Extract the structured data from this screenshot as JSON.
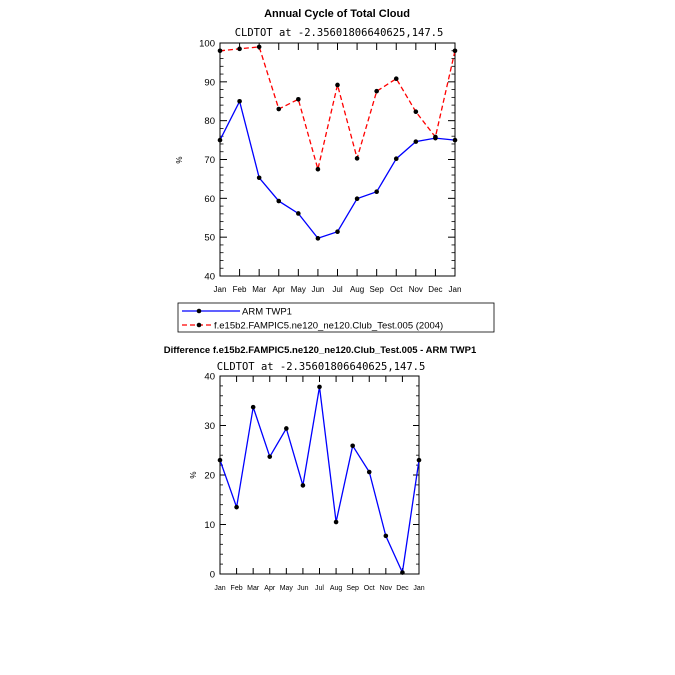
{
  "chart_data": [
    {
      "type": "line",
      "title": "Annual Cycle of Total Cloud",
      "subtitle": "CLDTOT at -2.35601806640625,147.5",
      "xlabel": "",
      "ylabel": "%",
      "categories": [
        "Jan",
        "Feb",
        "Mar",
        "Apr",
        "May",
        "Jun",
        "Jul",
        "Aug",
        "Sep",
        "Oct",
        "Nov",
        "Dec",
        "Jan"
      ],
      "ylim": [
        40,
        100
      ],
      "yticks": [
        40,
        50,
        60,
        70,
        80,
        90,
        100
      ],
      "series": [
        {
          "name": "ARM TWP1",
          "color": "#0000ff",
          "dash": "solid",
          "values": [
            75.0,
            85.0,
            65.3,
            59.3,
            56.1,
            49.7,
            51.4,
            59.9,
            61.7,
            70.2,
            74.6,
            75.5,
            75.0
          ]
        },
        {
          "name": "f.e15b2.FAMPIC5.ne120_ne120.Club_Test.005 (2004)",
          "color": "#ff0000",
          "dash": "dashed",
          "values": [
            98.0,
            98.5,
            99.0,
            83.0,
            85.5,
            67.5,
            89.2,
            70.3,
            87.6,
            90.8,
            82.3,
            75.8,
            98.0
          ]
        }
      ],
      "legend": "bottom-left"
    },
    {
      "type": "line",
      "title": "Difference f.e15b2.FAMPIC5.ne120_ne120.Club_Test.005 - ARM TWP1",
      "subtitle": "CLDTOT at -2.35601806640625,147.5",
      "xlabel": "",
      "ylabel": "%",
      "categories": [
        "Jan",
        "Feb",
        "Mar",
        "Apr",
        "May",
        "Jun",
        "Jul",
        "Aug",
        "Sep",
        "Oct",
        "Nov",
        "Dec",
        "Jan"
      ],
      "ylim": [
        0,
        40
      ],
      "yticks": [
        0,
        10,
        20,
        30,
        40
      ],
      "series": [
        {
          "name": "Difference",
          "color": "#0000ff",
          "dash": "solid",
          "values": [
            23.0,
            13.5,
            33.7,
            23.7,
            29.4,
            17.9,
            37.8,
            10.5,
            25.9,
            20.6,
            7.7,
            0.3,
            23.0
          ]
        }
      ]
    }
  ]
}
